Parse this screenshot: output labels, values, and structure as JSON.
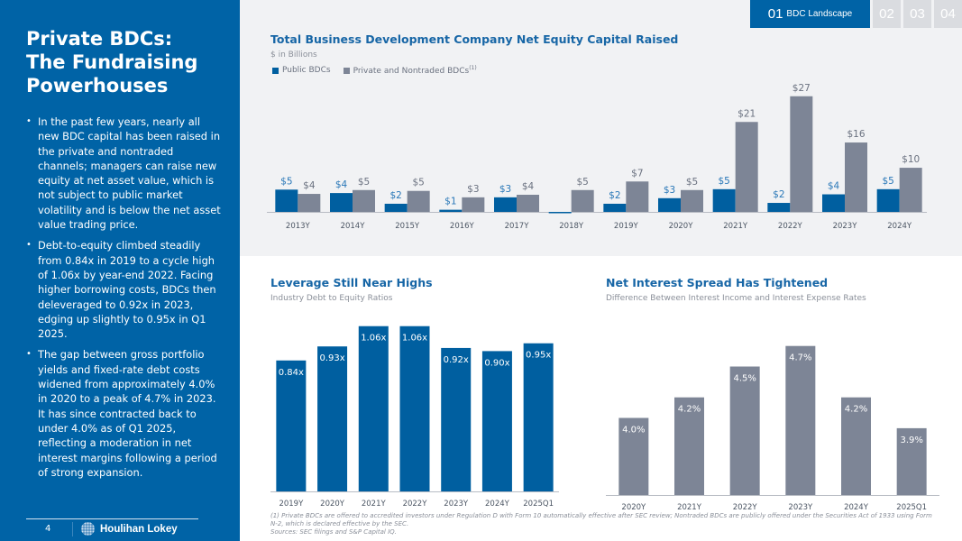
{
  "sidebar": {
    "title_lines": [
      "Private BDCs:",
      "The Fundraising",
      "Powerhouses"
    ],
    "bullets": [
      "In the past few years, nearly all new BDC capital has been raised in the private and nontraded channels; managers can raise new equity at net asset value, which is not subject to public market volatility and is below the net asset value trading price.",
      "Debt-to-equity climbed steadily from 0.84x in 2019 to a cycle high of 1.06x by year-end 2022. Facing higher borrowing costs, BDCs then deleveraged to 0.92x in 2023, edging up slightly to 0.95x in Q1 2025.",
      "The gap between gross portfolio yields and fixed-rate debt costs widened from approximately 4.0% in 2020 to a peak of 4.7% in 2023. It has since contracted back to under 4.0% as of Q1 2025, reflecting a moderation in net interest margins following a period of strong expansion."
    ],
    "bullet_glyph": "•",
    "page_number": "4",
    "logo_text": "Houlihan Lokey"
  },
  "nav": {
    "active": {
      "number": "01",
      "label": "BDC Landscape"
    },
    "tabs": [
      "02",
      "03",
      "04"
    ]
  },
  "colors": {
    "primary_blue": "#0063a6",
    "public_bar": "#005fa0",
    "private_bar": "#7d8596",
    "public_label": "#2a78b8",
    "private_label": "#6b7280",
    "title_blue": "#1766a6"
  },
  "chart_data": [
    {
      "type": "bar",
      "title": "Total Business Development Company Net Equity Capital Raised",
      "subtitle": "$ in Billions",
      "legend": [
        "Public BDCs",
        "Private and Nontraded BDCs"
      ],
      "legend_superscript": "(1)",
      "legend_position": "top-left",
      "categories": [
        "2013Y",
        "2014Y",
        "2015Y",
        "2016Y",
        "2017Y",
        "2018Y",
        "2019Y",
        "2020Y",
        "2021Y",
        "2022Y",
        "2023Y",
        "2024Y"
      ],
      "series": [
        {
          "name": "Public BDCs",
          "values": [
            5.2,
            4.4,
            1.9,
            0.5,
            3.4,
            -0.2,
            1.9,
            3.2,
            5.3,
            2.1,
            4.1,
            5.3
          ],
          "labels": [
            "$5",
            "$4",
            "$2",
            "$1",
            "$3",
            "",
            "$2",
            "$3",
            "$5",
            "$2",
            "$4",
            "$5"
          ]
        },
        {
          "name": "Private and Nontraded BDCs",
          "values": [
            4.2,
            5.1,
            4.9,
            3.4,
            4.0,
            5.1,
            7.1,
            5.1,
            21.0,
            27.0,
            16.2,
            10.3
          ],
          "labels": [
            "$4",
            "$5",
            "$5",
            "$3",
            "$4",
            "$5",
            "$7",
            "$5",
            "$21",
            "$27",
            "$16",
            "$10"
          ]
        }
      ],
      "ylim": [
        -1,
        28
      ],
      "grid": false,
      "xlabel": "",
      "ylabel": ""
    },
    {
      "type": "bar",
      "title": "Leverage Still Near Highs",
      "subtitle": "Industry Debt to Equity Ratios",
      "categories": [
        "2019Y",
        "2020Y",
        "2021Y",
        "2022Y",
        "2023Y",
        "2024Y",
        "2025Q1"
      ],
      "values": [
        0.84,
        0.93,
        1.06,
        1.06,
        0.92,
        0.9,
        0.95
      ],
      "labels": [
        "0.84x",
        "0.93x",
        "1.06x",
        "1.06x",
        "0.92x",
        "0.90x",
        "0.95x"
      ],
      "ylim": [
        0,
        1.07
      ],
      "grid": false,
      "xlabel": "",
      "ylabel": ""
    },
    {
      "type": "bar",
      "title": "Net Interest Spread Has Tightened",
      "subtitle": "Difference Between Interest Income and Interest Expense Rates",
      "categories": [
        "2020Y",
        "2021Y",
        "2022Y",
        "2023Y",
        "2024Y",
        "2025Q1"
      ],
      "values": [
        4.0,
        4.2,
        4.5,
        4.7,
        4.2,
        3.9
      ],
      "labels": [
        "4.0%",
        "4.2%",
        "4.5%",
        "4.7%",
        "4.2%",
        "3.9%"
      ],
      "ylim": [
        3.25,
        4.75
      ],
      "grid": false,
      "xlabel": "",
      "ylabel": ""
    }
  ],
  "footnotes": [
    "(1) Private BDCs are offered to accredited investors under Regulation D with Form 10 automatically effective after SEC review; Nontraded BDCs are publicly offered under the Securities Act of 1933 using Form N-2, which is declared effective by the SEC.",
    "Sources: SEC filings and S&P Capital IQ."
  ]
}
